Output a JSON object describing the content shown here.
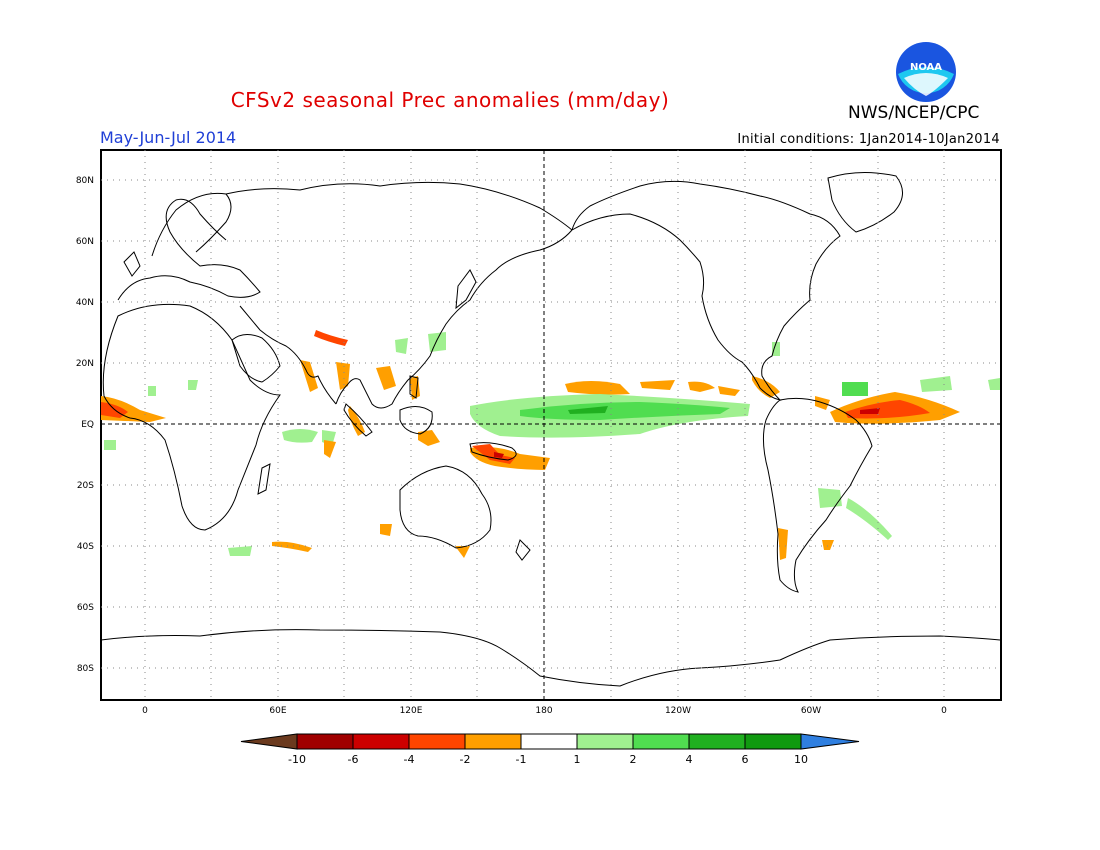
{
  "header": {
    "title": "CFSv2 seasonal Prec anomalies (mm/day)",
    "period": "May-Jun-Jul 2014",
    "initial_conditions": "Initial conditions: 1Jan2014-10Jan2014",
    "agency": "NWS/NCEP/CPC",
    "logo_text": "NOAA"
  },
  "axes": {
    "lat_ticks": [
      "80N",
      "60N",
      "40N",
      "20N",
      "EQ",
      "20S",
      "40S",
      "60S",
      "80S"
    ],
    "lon_ticks": [
      "0",
      "60E",
      "120E",
      "180",
      "120W",
      "60W",
      "0"
    ]
  },
  "colorbar": {
    "labels": [
      "-10",
      "-6",
      "-4",
      "-2",
      "-1",
      "1",
      "2",
      "4",
      "6",
      "10"
    ],
    "colors": [
      "#6b3a1e",
      "#a00000",
      "#cc0000",
      "#ff4500",
      "#ff9f00",
      "#ffffff",
      "#a0f090",
      "#50dd50",
      "#20b020",
      "#109a10",
      "#2f7fe0"
    ]
  },
  "colors": {
    "title": "#e00000",
    "period": "#1f3fd6",
    "coast": "#000000"
  }
}
